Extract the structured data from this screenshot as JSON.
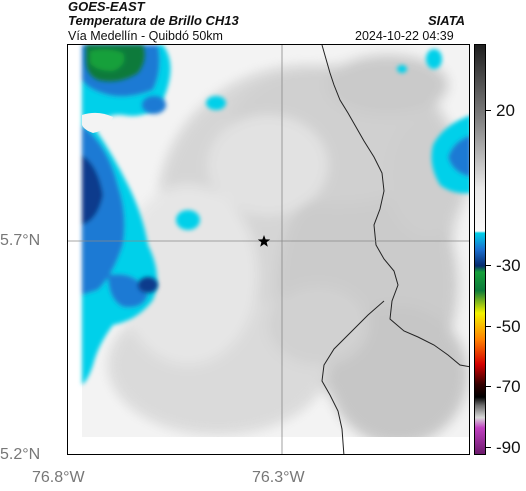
{
  "header": {
    "satellite": "GOES-EAST",
    "product": "Temperatura de Brillo CH13",
    "region": "Vía Medellín - Quibdó 50km",
    "organization": "SIATA",
    "timestamp": "2024-10-22 04:39"
  },
  "axes": {
    "lat_ticks": [
      "5.7°N",
      "5.2°N"
    ],
    "lon_ticks": [
      "76.8°W",
      "76.3°W"
    ]
  },
  "colorbar": {
    "ticks": [
      "20",
      "-30",
      "-50",
      "-70",
      "-90"
    ],
    "colors": {
      "cold_navy": "#062a6e",
      "blue": "#1a6fd0",
      "cyan": "#00cfe8",
      "green": "#16a03a",
      "yellow": "#f2f200",
      "orange": "#ff8000",
      "red": "#d40000",
      "black": "#000000",
      "magenta": "#c040c0",
      "warm_gray": "#6d6d6d"
    }
  },
  "map": {
    "marker": "star-marker",
    "features": [
      "department-boundary",
      "cloud-top-temperature-field"
    ]
  }
}
